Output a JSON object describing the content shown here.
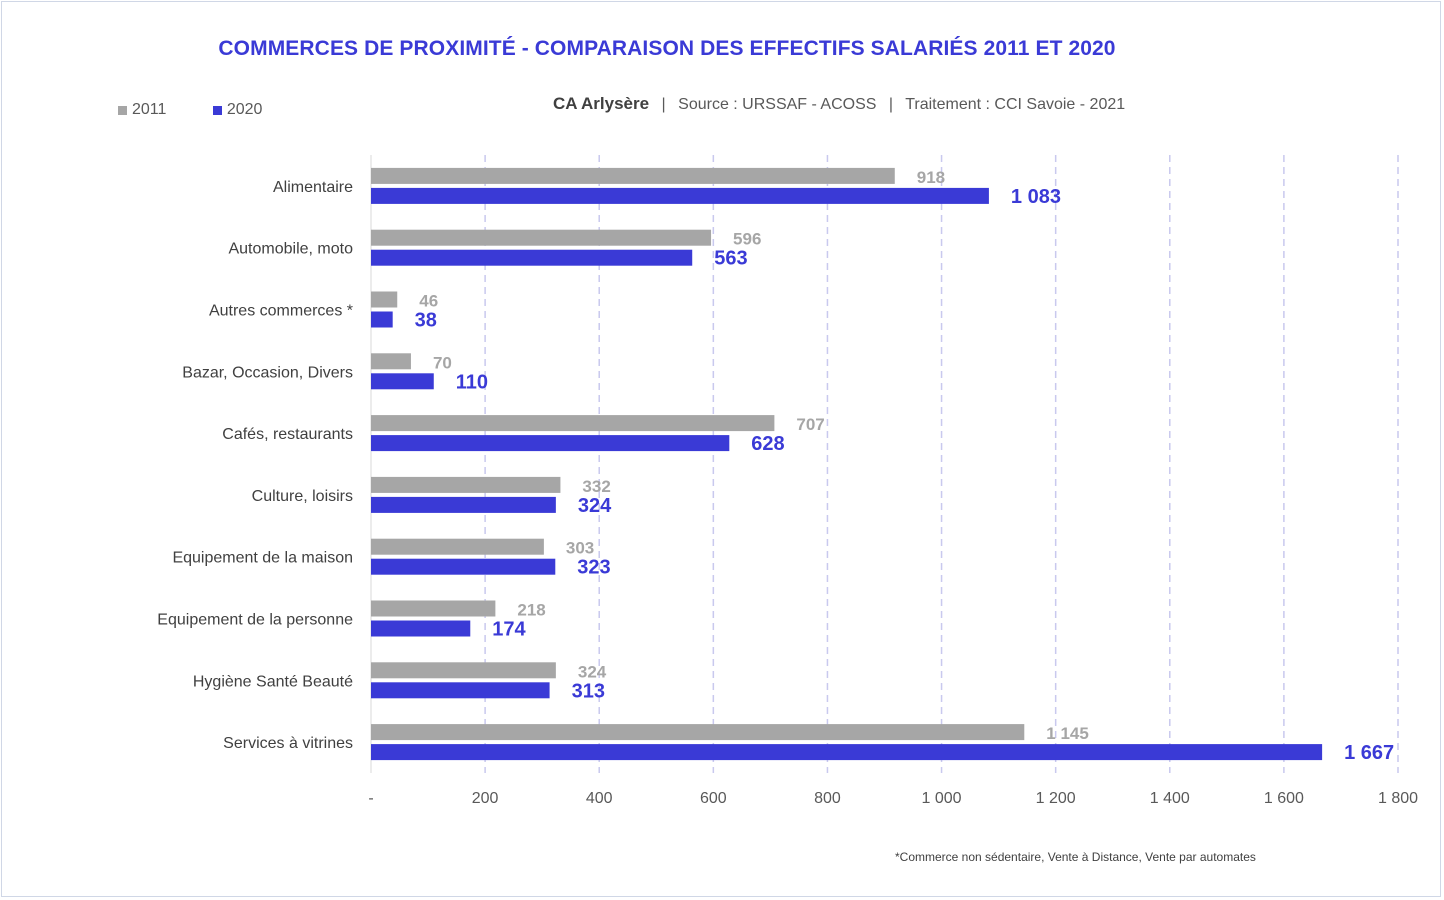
{
  "title": "COMMERCES DE PROXIMITÉ - COMPARAISON DES EFFECTIFS SALARIÉS 2011 ET 2020",
  "subtitle": {
    "territory": "CA Arlysère",
    "source": "Source : URSSAF - ACOSS",
    "treatment": "Traitement : CCI Savoie - 2021",
    "separator": "|"
  },
  "footnote": "*Commerce non sédentaire, Vente à Distance, Vente par automates",
  "colors": {
    "series_2011": "#a6a6a6",
    "series_2020": "#3a3ad6",
    "grid": "#c9c9ee"
  },
  "chart_data": {
    "type": "bar",
    "orientation": "horizontal",
    "title": "COMMERCES DE PROXIMITÉ - COMPARAISON DES EFFECTIFS SALARIÉS 2011 ET 2020",
    "categories": [
      "Alimentaire",
      "Automobile, moto",
      "Autres commerces *",
      "Bazar, Occasion, Divers",
      "Cafés, restaurants",
      "Culture, loisirs",
      "Equipement de la maison",
      "Equipement de la personne",
      "Hygiène Santé Beauté",
      "Services à vitrines"
    ],
    "series": [
      {
        "name": "2011",
        "values": [
          918,
          596,
          46,
          70,
          707,
          332,
          303,
          218,
          324,
          1145
        ],
        "labels": [
          "918",
          "596",
          "46",
          "70",
          "707",
          "332",
          "303",
          "218",
          "324",
          "1 145"
        ]
      },
      {
        "name": "2020",
        "values": [
          1083,
          563,
          38,
          110,
          628,
          324,
          323,
          174,
          313,
          1667
        ],
        "labels": [
          "1 083",
          "563",
          "38",
          "110",
          "628",
          "324",
          "323",
          "174",
          "313",
          "1 667"
        ]
      }
    ],
    "xlim": [
      0,
      1800
    ],
    "x_ticks": [
      0,
      200,
      400,
      600,
      800,
      1000,
      1200,
      1400,
      1600,
      1800
    ],
    "x_tick_labels": [
      "-",
      "200",
      "400",
      "600",
      "800",
      "1 000",
      "1 200",
      "1 400",
      "1 600",
      "1 800"
    ],
    "grid": "vertical dashed",
    "legend": "top-left"
  }
}
